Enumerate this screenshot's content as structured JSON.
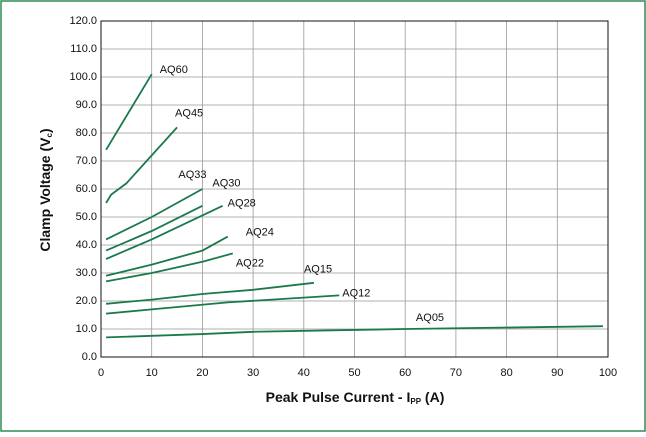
{
  "chart_data": {
    "type": "line",
    "xlabel": [
      "Peak Pulse Current - I",
      "PP",
      " (A)"
    ],
    "ylabel": [
      "Clamp Voltage (V",
      "c",
      ")"
    ],
    "xlim": [
      0,
      100
    ],
    "xticks": [
      0,
      10,
      20,
      30,
      40,
      50,
      60,
      70,
      80,
      90,
      100
    ],
    "ylim": [
      0,
      120
    ],
    "yticks": [
      {
        "value": 0,
        "label": "0.0"
      },
      {
        "value": 10,
        "label": "10.0"
      },
      {
        "value": 20,
        "label": "20.0"
      },
      {
        "value": 30,
        "label": "30.0"
      },
      {
        "value": 40,
        "label": "40.0"
      },
      {
        "value": 50,
        "label": "50.0"
      },
      {
        "value": 60,
        "label": "60.0"
      },
      {
        "value": 70,
        "label": "70.0"
      },
      {
        "value": 80,
        "label": "80.0"
      },
      {
        "value": 90,
        "label": "90.0"
      },
      {
        "value": 100,
        "label": "100.0"
      },
      {
        "value": 110,
        "label": "110.0"
      },
      {
        "value": 120,
        "label": "120.0"
      }
    ],
    "grid": true,
    "series": [
      {
        "name": "AQ60",
        "color": "#1b7a4b",
        "x": [
          1,
          10
        ],
        "values": [
          74,
          101
        ]
      },
      {
        "name": "AQ45",
        "color": "#1b7a4b",
        "x": [
          1,
          2,
          5,
          10,
          15
        ],
        "values": [
          55,
          58,
          62,
          72,
          82
        ]
      },
      {
        "name": "AQ33",
        "color": "#1b7a4b",
        "x": [
          1,
          10,
          20
        ],
        "values": [
          42,
          50,
          60
        ]
      },
      {
        "name": "AQ30",
        "color": "#1b7a4b",
        "x": [
          1,
          10,
          20
        ],
        "values": [
          38,
          45,
          54
        ]
      },
      {
        "name": "AQ28",
        "color": "#1b7a4b",
        "x": [
          1,
          10,
          24
        ],
        "values": [
          35,
          42,
          54
        ]
      },
      {
        "name": "AQ24",
        "color": "#1b7a4b",
        "x": [
          1,
          10,
          20,
          25
        ],
        "values": [
          29,
          33,
          38,
          43
        ]
      },
      {
        "name": "AQ22",
        "color": "#1b7a4b",
        "x": [
          1,
          10,
          20,
          26
        ],
        "values": [
          27,
          30,
          34,
          37
        ]
      },
      {
        "name": "AQ15",
        "color": "#1b7a4b",
        "x": [
          1,
          10,
          20,
          22,
          30,
          42
        ],
        "values": [
          19,
          20.5,
          22.5,
          22.8,
          24,
          26.5
        ]
      },
      {
        "name": "AQ12",
        "color": "#1b7a4b",
        "x": [
          1,
          10,
          25,
          47
        ],
        "values": [
          15.5,
          17,
          19.5,
          22
        ]
      },
      {
        "name": "AQ05",
        "color": "#1b7a4b",
        "x": [
          1,
          20,
          30,
          60,
          99
        ],
        "values": [
          7,
          8.2,
          9,
          10,
          11
        ]
      }
    ]
  }
}
